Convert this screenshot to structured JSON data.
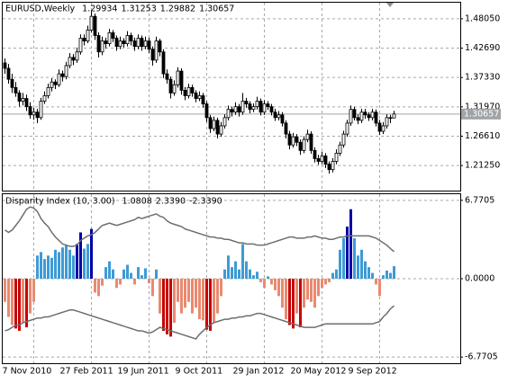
{
  "chart_data": {
    "type": "candlestick",
    "title": "EURUSD,Weekly",
    "categories": [
      "7 Nov 2010",
      null,
      null,
      null,
      null,
      null,
      null,
      null,
      null,
      null,
      null,
      null,
      null,
      null,
      null,
      null,
      "27 Feb 2011",
      null,
      null,
      null,
      null,
      null,
      null,
      null,
      null,
      null,
      null,
      null,
      null,
      null,
      null,
      null,
      "19 Jun 2011",
      null,
      null,
      null,
      null,
      null,
      null,
      null,
      null,
      null,
      null,
      null,
      null,
      null,
      null,
      null,
      "9 Oct 2011",
      null,
      null,
      null,
      null,
      null,
      null,
      null,
      null,
      null,
      null,
      null,
      null,
      null,
      null,
      null,
      "29 Jan 2012",
      null,
      null,
      null,
      null,
      null,
      null,
      null,
      null,
      null,
      null,
      null,
      null,
      null,
      null,
      null,
      "20 May 2012",
      null,
      null,
      null,
      null,
      null,
      null,
      null,
      null,
      null,
      null,
      null,
      null,
      null,
      null,
      null,
      "9 Sep 2012",
      null,
      null,
      null,
      null,
      null,
      null,
      null,
      null,
      null,
      null,
      null,
      null
    ],
    "candles": [
      [
        1.4,
        1.408,
        1.38,
        1.39
      ],
      [
        1.39,
        1.398,
        1.362,
        1.37
      ],
      [
        1.37,
        1.38,
        1.345,
        1.355
      ],
      [
        1.355,
        1.365,
        1.338,
        1.345
      ],
      [
        1.345,
        1.35,
        1.32,
        1.33
      ],
      [
        1.33,
        1.345,
        1.322,
        1.335
      ],
      [
        1.335,
        1.342,
        1.312,
        1.32
      ],
      [
        1.32,
        1.328,
        1.298,
        1.305
      ],
      [
        1.305,
        1.318,
        1.296,
        1.31
      ],
      [
        1.31,
        1.316,
        1.29,
        1.3
      ],
      [
        1.3,
        1.336,
        1.296,
        1.33
      ],
      [
        1.33,
        1.348,
        1.325,
        1.34
      ],
      [
        1.34,
        1.362,
        1.335,
        1.355
      ],
      [
        1.355,
        1.372,
        1.348,
        1.365
      ],
      [
        1.365,
        1.37,
        1.352,
        1.36
      ],
      [
        1.36,
        1.388,
        1.356,
        1.38
      ],
      [
        1.38,
        1.386,
        1.366,
        1.375
      ],
      [
        1.375,
        1.402,
        1.37,
        1.395
      ],
      [
        1.395,
        1.418,
        1.39,
        1.41
      ],
      [
        1.41,
        1.416,
        1.396,
        1.405
      ],
      [
        1.405,
        1.428,
        1.4,
        1.42
      ],
      [
        1.42,
        1.452,
        1.415,
        1.445
      ],
      [
        1.445,
        1.452,
        1.432,
        1.44
      ],
      [
        1.44,
        1.468,
        1.436,
        1.46
      ],
      [
        1.46,
        1.494,
        1.455,
        1.485
      ],
      [
        1.485,
        1.49,
        1.442,
        1.45
      ],
      [
        1.45,
        1.456,
        1.41,
        1.42
      ],
      [
        1.42,
        1.448,
        1.414,
        1.44
      ],
      [
        1.44,
        1.446,
        1.426,
        1.435
      ],
      [
        1.435,
        1.462,
        1.43,
        1.455
      ],
      [
        1.455,
        1.46,
        1.438,
        1.445
      ],
      [
        1.445,
        1.45,
        1.422,
        1.43
      ],
      [
        1.43,
        1.448,
        1.425,
        1.44
      ],
      [
        1.44,
        1.445,
        1.428,
        1.435
      ],
      [
        1.435,
        1.458,
        1.43,
        1.45
      ],
      [
        1.45,
        1.455,
        1.432,
        1.44
      ],
      [
        1.44,
        1.446,
        1.422,
        1.43
      ],
      [
        1.43,
        1.452,
        1.425,
        1.445
      ],
      [
        1.445,
        1.45,
        1.422,
        1.43
      ],
      [
        1.43,
        1.448,
        1.425,
        1.44
      ],
      [
        1.44,
        1.446,
        1.418,
        1.425
      ],
      [
        1.425,
        1.43,
        1.395,
        1.405
      ],
      [
        1.405,
        1.448,
        1.4,
        1.44
      ],
      [
        1.44,
        1.444,
        1.412,
        1.42
      ],
      [
        1.42,
        1.425,
        1.372,
        1.38
      ],
      [
        1.38,
        1.388,
        1.362,
        1.37
      ],
      [
        1.37,
        1.375,
        1.335,
        1.345
      ],
      [
        1.345,
        1.368,
        1.34,
        1.36
      ],
      [
        1.36,
        1.392,
        1.355,
        1.385
      ],
      [
        1.385,
        1.39,
        1.342,
        1.35
      ],
      [
        1.35,
        1.356,
        1.332,
        1.34
      ],
      [
        1.34,
        1.362,
        1.335,
        1.355
      ],
      [
        1.355,
        1.36,
        1.338,
        1.345
      ],
      [
        1.345,
        1.35,
        1.328,
        1.335
      ],
      [
        1.335,
        1.348,
        1.33,
        1.34
      ],
      [
        1.34,
        1.345,
        1.318,
        1.325
      ],
      [
        1.325,
        1.33,
        1.292,
        1.3
      ],
      [
        1.3,
        1.305,
        1.272,
        1.28
      ],
      [
        1.28,
        1.302,
        1.275,
        1.295
      ],
      [
        1.295,
        1.3,
        1.262,
        1.27
      ],
      [
        1.27,
        1.292,
        1.265,
        1.285
      ],
      [
        1.285,
        1.306,
        1.28,
        1.3
      ],
      [
        1.3,
        1.322,
        1.295,
        1.315
      ],
      [
        1.315,
        1.32,
        1.302,
        1.31
      ],
      [
        1.31,
        1.328,
        1.305,
        1.32
      ],
      [
        1.32,
        1.325,
        1.302,
        1.31
      ],
      [
        1.31,
        1.345,
        1.305,
        1.33
      ],
      [
        1.33,
        1.336,
        1.318,
        1.325
      ],
      [
        1.325,
        1.33,
        1.308,
        1.315
      ],
      [
        1.315,
        1.326,
        1.31,
        1.32
      ],
      [
        1.32,
        1.338,
        1.315,
        1.33
      ],
      [
        1.33,
        1.335,
        1.304,
        1.31
      ],
      [
        1.31,
        1.332,
        1.305,
        1.325
      ],
      [
        1.325,
        1.33,
        1.314,
        1.32
      ],
      [
        1.32,
        1.325,
        1.304,
        1.31
      ],
      [
        1.31,
        1.316,
        1.294,
        1.3
      ],
      [
        1.3,
        1.312,
        1.295,
        1.305
      ],
      [
        1.305,
        1.31,
        1.284,
        1.29
      ],
      [
        1.29,
        1.295,
        1.262,
        1.27
      ],
      [
        1.27,
        1.276,
        1.242,
        1.25
      ],
      [
        1.25,
        1.272,
        1.245,
        1.265
      ],
      [
        1.265,
        1.27,
        1.248,
        1.255
      ],
      [
        1.255,
        1.26,
        1.232,
        1.24
      ],
      [
        1.24,
        1.266,
        1.235,
        1.26
      ],
      [
        1.26,
        1.278,
        1.255,
        1.27
      ],
      [
        1.27,
        1.275,
        1.234,
        1.24
      ],
      [
        1.24,
        1.246,
        1.218,
        1.225
      ],
      [
        1.225,
        1.232,
        1.214,
        1.22
      ],
      [
        1.22,
        1.238,
        1.215,
        1.23
      ],
      [
        1.23,
        1.235,
        1.208,
        1.215
      ],
      [
        1.215,
        1.22,
        1.198,
        1.205
      ],
      [
        1.205,
        1.226,
        1.2,
        1.22
      ],
      [
        1.22,
        1.242,
        1.215,
        1.235
      ],
      [
        1.235,
        1.256,
        1.23,
        1.25
      ],
      [
        1.25,
        1.276,
        1.245,
        1.27
      ],
      [
        1.27,
        1.296,
        1.265,
        1.29
      ],
      [
        1.29,
        1.322,
        1.285,
        1.315
      ],
      [
        1.315,
        1.32,
        1.295,
        1.3
      ],
      [
        1.3,
        1.306,
        1.288,
        1.295
      ],
      [
        1.295,
        1.316,
        1.29,
        1.31
      ],
      [
        1.31,
        1.316,
        1.298,
        1.305
      ],
      [
        1.305,
        1.31,
        1.294,
        1.3
      ],
      [
        1.3,
        1.316,
        1.295,
        1.31
      ],
      [
        1.31,
        1.315,
        1.284,
        1.29
      ],
      [
        1.29,
        1.296,
        1.268,
        1.275
      ],
      [
        1.275,
        1.292,
        1.27,
        1.285
      ],
      [
        1.285,
        1.306,
        1.28,
        1.3
      ],
      [
        1.3,
        1.305,
        1.29,
        1.2993
      ],
      [
        1.29934,
        1.31253,
        1.29882,
        1.30657
      ]
    ],
    "ylim": [
      1.1667,
      1.5099
    ],
    "yticks": [
      {
        "value": 1.4805,
        "label": "1.48050"
      },
      {
        "value": 1.4269,
        "label": "1.42690"
      },
      {
        "value": 1.3733,
        "label": "1.37330"
      },
      {
        "value": 1.3197,
        "label": "1.31970"
      },
      {
        "value": 1.2661,
        "label": "1.26610"
      },
      {
        "value": 1.2125,
        "label": "1.21250"
      }
    ],
    "grid": true,
    "up_color": "#ffffff",
    "down_color": "#000000",
    "last_price_color": "#a0a4a8",
    "indicator": {
      "type": "histogram",
      "title": "Disparity Index (10, 3.00)",
      "values": [
        -2.0,
        -3.3,
        -4.0,
        -4.3,
        -4.5,
        -3.8,
        -4.2,
        -3.0,
        -2.0,
        2.0,
        2.3,
        1.7,
        2.0,
        1.8,
        2.5,
        2.3,
        2.7,
        2.9,
        2.5,
        2.0,
        3.0,
        4.0,
        2.6,
        3.0,
        4.3,
        -1.2,
        -1.5,
        -0.6,
        1.0,
        1.5,
        0.8,
        -0.8,
        -0.5,
        0.8,
        1.2,
        0.5,
        -0.5,
        1.0,
        0.3,
        0.9,
        -0.4,
        -1.5,
        0.8,
        -3.0,
        -4.5,
        -4.8,
        -5.0,
        -3.8,
        -2.0,
        -3.0,
        -2.5,
        -2.0,
        -3.0,
        -2.5,
        -3.5,
        -3.6,
        -4.4,
        -4.5,
        -3.8,
        -3.0,
        -1.5,
        0.8,
        2.0,
        1.0,
        1.5,
        0.8,
        3.0,
        1.5,
        0.8,
        0.3,
        0.6,
        -0.3,
        -0.8,
        0.2,
        -0.5,
        -1.0,
        -1.5,
        -2.5,
        -3.5,
        -4.0,
        -4.3,
        -3.0,
        -4.2,
        -2.5,
        -1.8,
        -2.0,
        -2.5,
        -1.5,
        -0.8,
        -0.5,
        -0.3,
        0.5,
        0.8,
        2.5,
        3.5,
        4.5,
        6.0,
        3.5,
        2.0,
        2.5,
        1.5,
        1.0,
        0.5,
        -0.5,
        -1.5,
        0.3,
        0.7,
        0.5,
        1.0808
      ],
      "upper": [
        4.2,
        4.0,
        4.2,
        4.6,
        5.0,
        5.5,
        6.0,
        6.2,
        6.1,
        5.8,
        5.2,
        4.8,
        4.5,
        4.0,
        3.6,
        3.3,
        3.0,
        2.9,
        2.8,
        2.8,
        2.9,
        3.3,
        3.5,
        3.7,
        3.8,
        4.0,
        4.3,
        4.6,
        4.7,
        4.8,
        4.7,
        4.6,
        4.7,
        4.8,
        4.9,
        5.0,
        5.1,
        5.3,
        5.2,
        5.3,
        5.4,
        5.5,
        5.6,
        5.4,
        5.3,
        5.0,
        4.8,
        4.7,
        4.6,
        4.5,
        4.3,
        4.2,
        4.1,
        4.0,
        3.9,
        3.8,
        3.7,
        3.6,
        3.6,
        3.5,
        3.5,
        3.4,
        3.4,
        3.3,
        3.2,
        3.1,
        3.1,
        3.0,
        3.0,
        3.0,
        2.9,
        2.9,
        2.9,
        3.0,
        3.1,
        3.2,
        3.3,
        3.4,
        3.5,
        3.6,
        3.6,
        3.5,
        3.5,
        3.5,
        3.6,
        3.6,
        3.7,
        3.6,
        3.5,
        3.5,
        3.4,
        3.4,
        3.5,
        3.6,
        3.6,
        3.7,
        3.7,
        3.7,
        3.7,
        3.7,
        3.7,
        3.7,
        3.6,
        3.5,
        3.3,
        3.1,
        2.9,
        2.6,
        2.339
      ],
      "upper_label": "2.3390",
      "lower": [
        -4.5,
        -4.4,
        -4.2,
        -4.0,
        -4.0,
        -3.8,
        -3.7,
        -3.6,
        -3.5,
        -3.4,
        -3.4,
        -3.3,
        -3.3,
        -3.2,
        -3.1,
        -3.0,
        -2.9,
        -2.8,
        -2.7,
        -2.7,
        -2.8,
        -2.9,
        -3.0,
        -3.1,
        -3.2,
        -3.3,
        -3.4,
        -3.5,
        -3.6,
        -3.7,
        -3.8,
        -3.9,
        -4.0,
        -4.1,
        -4.2,
        -4.3,
        -4.4,
        -4.5,
        -4.5,
        -4.6,
        -4.7,
        -4.6,
        -4.4,
        -4.2,
        -4.3,
        -4.4,
        -4.5,
        -4.6,
        -4.7,
        -4.8,
        -4.9,
        -5.0,
        -5.1,
        -5.2,
        -4.8,
        -4.5,
        -4.2,
        -4.0,
        -3.8,
        -3.7,
        -3.6,
        -3.5,
        -3.5,
        -3.4,
        -3.4,
        -3.3,
        -3.3,
        -3.2,
        -3.2,
        -3.1,
        -3.0,
        -3.0,
        -3.1,
        -3.2,
        -3.3,
        -3.4,
        -3.5,
        -3.6,
        -3.7,
        -3.8,
        -3.9,
        -4.0,
        -4.1,
        -4.2,
        -4.2,
        -4.2,
        -4.2,
        -4.1,
        -4.0,
        -3.9,
        -3.9,
        -3.9,
        -3.9,
        -3.9,
        -3.9,
        -3.9,
        -3.9,
        -3.9,
        -3.9,
        -3.9,
        -3.9,
        -3.9,
        -3.9,
        -3.8,
        -3.7,
        -3.3,
        -3.0,
        -2.6,
        -2.339
      ],
      "lower_label": "-2.3390",
      "ylim": [
        -7.3,
        7.3
      ],
      "yticks": [
        6.7705,
        {
          "value": 0,
          "label": "0.0000"
        },
        -6.7705
      ],
      "colors": {
        "up": "#3d9bd6",
        "up_strong": "#0000a8",
        "down": "#e98a70",
        "down_strong": "#c80000",
        "band": "#6e6e6e"
      }
    }
  }
}
